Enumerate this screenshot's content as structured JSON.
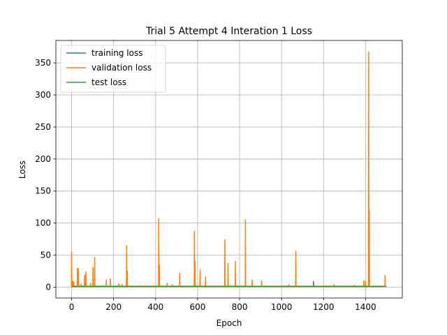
{
  "chart_data": {
    "type": "line",
    "title": "Trial 5 Attempt 4 Interation 1 Loss",
    "xlabel": "Epoch",
    "ylabel": "Loss",
    "xlim": [
      -75,
      1575
    ],
    "ylim": [
      -17,
      385
    ],
    "xticks": [
      0,
      200,
      400,
      600,
      800,
      1000,
      1200,
      1400
    ],
    "yticks": [
      0,
      50,
      100,
      150,
      200,
      250,
      300,
      350
    ],
    "grid": true,
    "legend_position": "top-left",
    "series": [
      {
        "name": "training loss",
        "color": "#1f77b4",
        "baseline": 1.0,
        "spikes": [
          [
            1152,
            9
          ]
        ]
      },
      {
        "name": "validation loss",
        "color": "#ff7f0e",
        "baseline": 1.5,
        "spikes": [
          [
            0,
            55
          ],
          [
            5,
            9
          ],
          [
            10,
            8
          ],
          [
            28,
            29
          ],
          [
            32,
            29
          ],
          [
            45,
            5
          ],
          [
            62,
            19
          ],
          [
            68,
            24
          ],
          [
            90,
            6
          ],
          [
            102,
            31
          ],
          [
            110,
            46
          ],
          [
            165,
            11
          ],
          [
            185,
            13
          ],
          [
            225,
            5
          ],
          [
            240,
            4
          ],
          [
            262,
            65
          ],
          [
            265,
            25
          ],
          [
            415,
            107
          ],
          [
            418,
            35
          ],
          [
            455,
            6
          ],
          [
            480,
            4
          ],
          [
            515,
            22
          ],
          [
            585,
            87
          ],
          [
            588,
            40
          ],
          [
            612,
            27
          ],
          [
            638,
            16
          ],
          [
            730,
            74
          ],
          [
            745,
            37
          ],
          [
            780,
            40
          ],
          [
            828,
            105
          ],
          [
            860,
            11
          ],
          [
            905,
            10
          ],
          [
            1035,
            4
          ],
          [
            1068,
            56
          ],
          [
            1250,
            4
          ],
          [
            1345,
            3
          ],
          [
            1392,
            10
          ],
          [
            1400,
            9
          ],
          [
            1415,
            367
          ],
          [
            1418,
            120
          ],
          [
            1493,
            18
          ]
        ]
      },
      {
        "name": "test loss",
        "color": "#2ca02c",
        "baseline": 0.8,
        "spikes": []
      }
    ],
    "x_end": 1499
  }
}
